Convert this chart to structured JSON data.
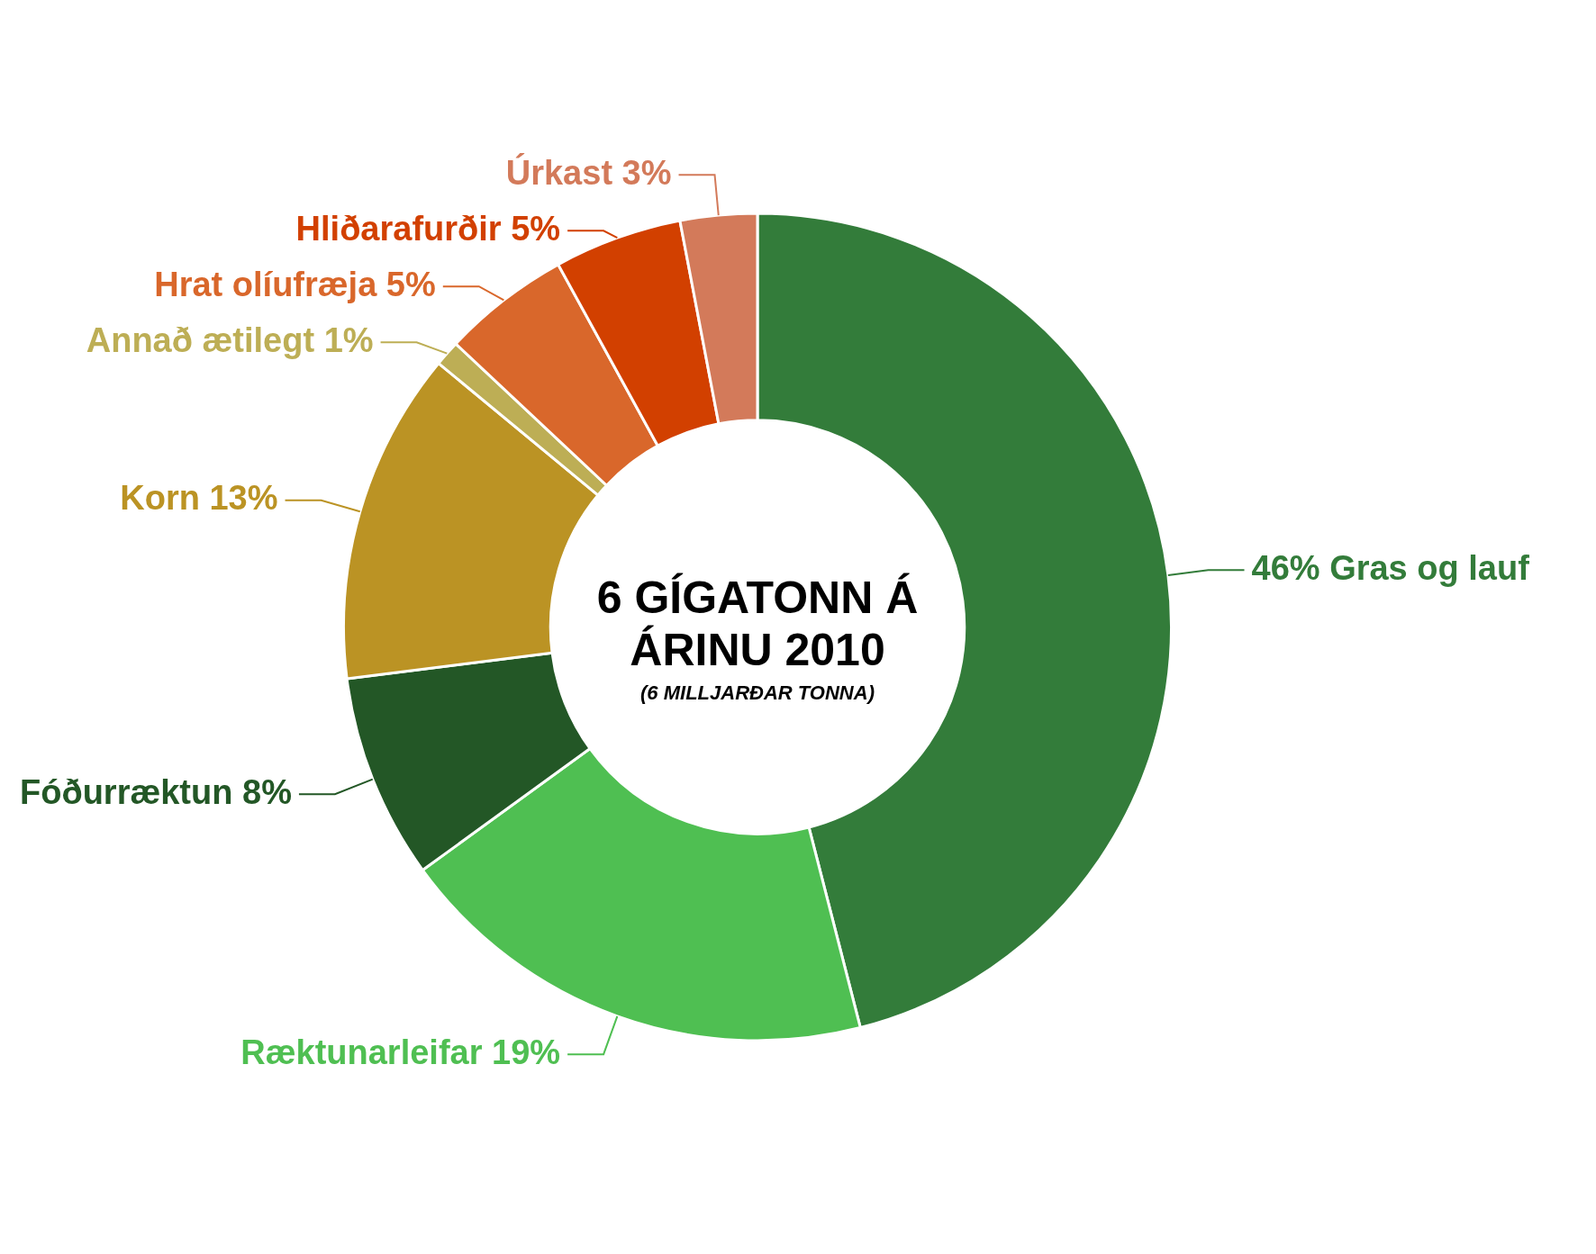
{
  "chart_data": {
    "type": "donut",
    "title": "6 GÍGATONN Á ÁRINU 2010",
    "subtitle": "(6 MILLJARÐAR TONNA)",
    "categories": [
      "Gras og lauf",
      "Ræktunarleifar",
      "Fóðurræktun",
      "Korn",
      "Annað ætilegt",
      "Hrat olíufræja",
      "Hliðarafurðir",
      "Úrkast"
    ],
    "values": [
      46,
      19,
      8,
      13,
      1,
      5,
      5,
      3
    ],
    "value_labels": [
      "46%",
      "19%",
      "8%",
      "13%",
      "1%",
      "5%",
      "5%",
      "3%"
    ],
    "colors": [
      "#337c3a",
      "#4fbf52",
      "#235726",
      "#bb9324",
      "#bdae55",
      "#d9672b",
      "#d24000",
      "#d37a5a"
    ],
    "legend": false
  }
}
